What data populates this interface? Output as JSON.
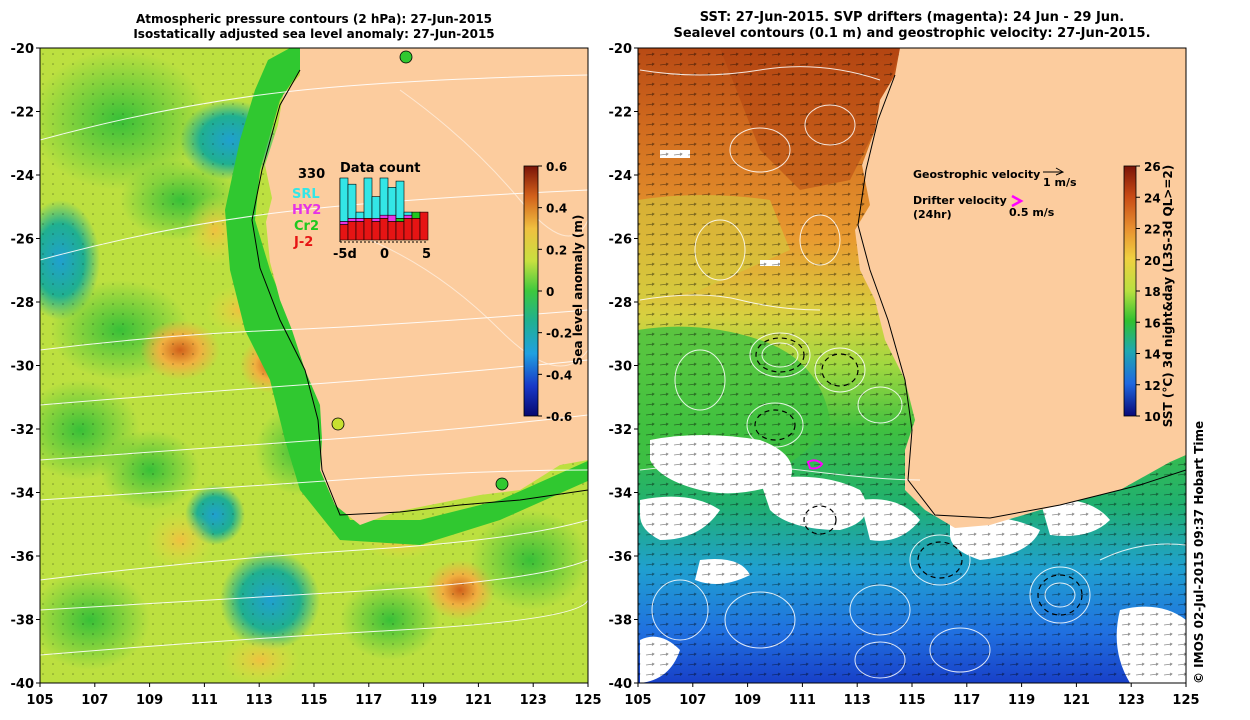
{
  "left_panel": {
    "title_line1": "Atmospheric pressure contours (2 hPa): 27-Jun-2015",
    "title_line2": "Isostatically adjusted sea level anomaly: 27-Jun-2015",
    "y_ticks": [
      "-20",
      "-22",
      "-24",
      "-26",
      "-28",
      "-30",
      "-32",
      "-34",
      "-36",
      "-38",
      "-40"
    ],
    "x_ticks": [
      "105",
      "107",
      "109",
      "111",
      "113",
      "115",
      "117",
      "119",
      "121",
      "123",
      "125"
    ],
    "colorbar": {
      "label": "Sea level anomaly (m)",
      "ticks": [
        "0.6",
        "0.4",
        "0.2",
        "0",
        "-0.2",
        "-0.4",
        "-0.6"
      ]
    },
    "data_count": {
      "title": "Data count",
      "max_label": "330",
      "legend": [
        {
          "label": "SRL",
          "color": "#33e6e6"
        },
        {
          "label": "HY2",
          "color": "#e633e6"
        },
        {
          "label": "Cr2",
          "color": "#1ec81e"
        },
        {
          "label": "J-2",
          "color": "#e61414"
        }
      ],
      "x_labels": [
        "-5d",
        "0",
        "5"
      ],
      "bars": [
        {
          "srl": 1.0,
          "hy2": 0.3,
          "cr2": 0.25,
          "j2": 0.25
        },
        {
          "srl": 0.9,
          "hy2": 0.35,
          "cr2": 0.3,
          "j2": 0.3
        },
        {
          "srl": 0.45,
          "hy2": 0.35,
          "cr2": 0.3,
          "j2": 0.3
        },
        {
          "srl": 1.0,
          "hy2": 0.35,
          "cr2": 0.35,
          "j2": 0.35
        },
        {
          "srl": 0.7,
          "hy2": 0.35,
          "cr2": 0.3,
          "j2": 0.3
        },
        {
          "srl": 1.0,
          "hy2": 0.4,
          "cr2": 0.35,
          "j2": 0.35
        },
        {
          "srl": 0.85,
          "hy2": 0.4,
          "cr2": 0.3,
          "j2": 0.3
        },
        {
          "srl": 0.95,
          "hy2": 0.35,
          "cr2": 0.35,
          "j2": 0.3
        },
        {
          "srl": 0.45,
          "hy2": 0.4,
          "cr2": 0.35,
          "j2": 0.35
        },
        {
          "srl": 0.45,
          "hy2": 0.45,
          "cr2": 0.45,
          "j2": 0.35
        },
        {
          "srl": 0.45,
          "hy2": 0.45,
          "cr2": 0.45,
          "j2": 0.45
        }
      ]
    }
  },
  "right_panel": {
    "title_line1": "SST: 27-Jun-2015. SVP drifters (magenta): 24 Jun - 29 Jun.",
    "title_line2": "Sealevel contours (0.1 m) and geostrophic velocity: 27-Jun-2015.",
    "y_ticks": [
      "-20",
      "-22",
      "-24",
      "-26",
      "-28",
      "-30",
      "-32",
      "-34",
      "-36",
      "-38",
      "-40"
    ],
    "x_ticks": [
      "105",
      "107",
      "109",
      "111",
      "113",
      "115",
      "117",
      "119",
      "121",
      "123",
      "125"
    ],
    "colorbar": {
      "label": "SST (°C) 3d night&day (L3S-3d QL>=2)",
      "ticks": [
        "26",
        "24",
        "22",
        "20",
        "18",
        "16",
        "14",
        "12",
        "10"
      ]
    },
    "geostrophic_label": "Geostrophic velocity",
    "geostrophic_scale": "1 m/s",
    "drifter_label_line1": "Drifter velocity",
    "drifter_label_line2": "(24hr)",
    "drifter_scale": "0.5 m/s"
  },
  "credit": "© IMOS 02-Jul-2015 09:37 Hobart Time"
}
